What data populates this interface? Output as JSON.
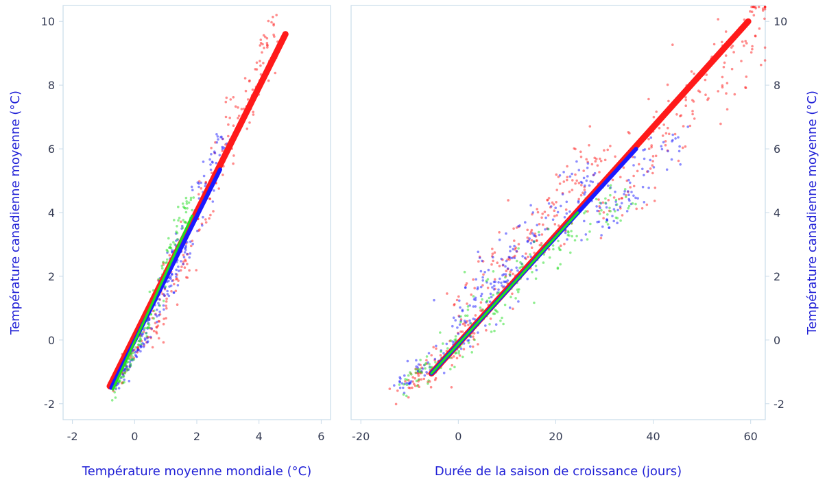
{
  "chart_data": [
    {
      "type": "scatter",
      "xlabel": "Température moyenne mondiale (°C)",
      "ylabel": "Température canadienne moyenne (°C)",
      "xlim": [
        -2.3,
        6.3
      ],
      "ylim": [
        -2.5,
        10.5
      ],
      "xticks": [
        "-2",
        "0",
        "2",
        "4",
        "6"
      ],
      "xtick_values": [
        -2,
        0,
        2,
        4,
        6
      ],
      "yticks": [
        "-2",
        "0",
        "2",
        "4",
        "6",
        "8",
        "10"
      ],
      "ytick_values": [
        -2,
        0,
        2,
        4,
        6,
        8,
        10
      ],
      "series": [
        {
          "color": "#ff1a1a",
          "fit_line": [
            [
              -0.8,
              -1.45
            ],
            [
              4.85,
              9.6
            ]
          ],
          "clouds": [
            [
              -0.8,
              0.6,
              -1.6,
              0.6,
              0.35,
              0.25,
              60
            ],
            [
              0.5,
              1.5,
              0.0,
              2.8,
              0.4,
              0.3,
              50
            ],
            [
              1.5,
              4.6,
              2.5,
              9.8,
              0.3,
              0.8,
              140
            ]
          ]
        },
        {
          "color": "#1a1aff",
          "fit_line": [
            [
              -0.75,
              -1.5
            ],
            [
              2.75,
              5.35
            ]
          ],
          "clouds": [
            [
              -0.7,
              0.3,
              -1.5,
              0.0,
              0.15,
              0.25,
              60
            ],
            [
              0.3,
              1.6,
              0.0,
              3.0,
              0.3,
              0.35,
              90
            ],
            [
              1.3,
              2.8,
              2.5,
              6.4,
              0.3,
              0.4,
              70
            ]
          ]
        },
        {
          "color": "#22dd22",
          "fit_line": [
            [
              -0.7,
              -1.55
            ],
            [
              1.85,
              3.9
            ]
          ],
          "clouds": [
            [
              -0.75,
              0.2,
              -1.8,
              0.2,
              0.12,
              0.3,
              60
            ],
            [
              0.2,
              1.8,
              0.0,
              4.5,
              0.25,
              0.35,
              90
            ]
          ]
        }
      ]
    },
    {
      "type": "scatter",
      "xlabel": "Durée de la saison de croissance (jours)",
      "ylabel": "Température canadienne moyenne (°C)",
      "xlim": [
        -22,
        63
      ],
      "ylim": [
        -2.5,
        10.5
      ],
      "xticks": [
        "-20",
        "0",
        "20",
        "40",
        "60"
      ],
      "xtick_values": [
        -20,
        0,
        20,
        40,
        60
      ],
      "yticks": [
        "-2",
        "0",
        "2",
        "4",
        "6",
        "8",
        "10"
      ],
      "ytick_values": [
        -2,
        0,
        2,
        4,
        6,
        8,
        10
      ],
      "series": [
        {
          "color": "#ff1a1a",
          "fit_line": [
            [
              -5.5,
              -1.05
            ],
            [
              59.5,
              10.0
            ]
          ],
          "clouds": [
            [
              -12,
              2,
              -1.7,
              0.1,
              2.5,
              0.4,
              70
            ],
            [
              0,
              30,
              0.5,
              6.0,
              4.5,
              1.1,
              180
            ],
            [
              30,
              63,
              4.0,
              10.4,
              4.5,
              1.2,
              160
            ]
          ]
        },
        {
          "color": "#1a1aff",
          "fit_line": [
            [
              -5.5,
              -1.05
            ],
            [
              36.5,
              6.0
            ]
          ],
          "clouds": [
            [
              -12,
              2,
              -1.5,
              0.1,
              2.5,
              0.35,
              70
            ],
            [
              0,
              28,
              0.5,
              5.2,
              4.0,
              0.9,
              170
            ],
            [
              28,
              46,
              3.5,
              6.4,
              3.5,
              0.7,
              70
            ]
          ]
        },
        {
          "color": "#22dd22",
          "fit_line": [
            [
              -5.5,
              -1.05
            ],
            [
              24.5,
              4.0
            ]
          ],
          "clouds": [
            [
              -11,
              2,
              -1.4,
              0.1,
              2.5,
              0.35,
              70
            ],
            [
              0,
              34,
              0.2,
              4.8,
              4.0,
              0.8,
              150
            ]
          ]
        }
      ]
    }
  ]
}
